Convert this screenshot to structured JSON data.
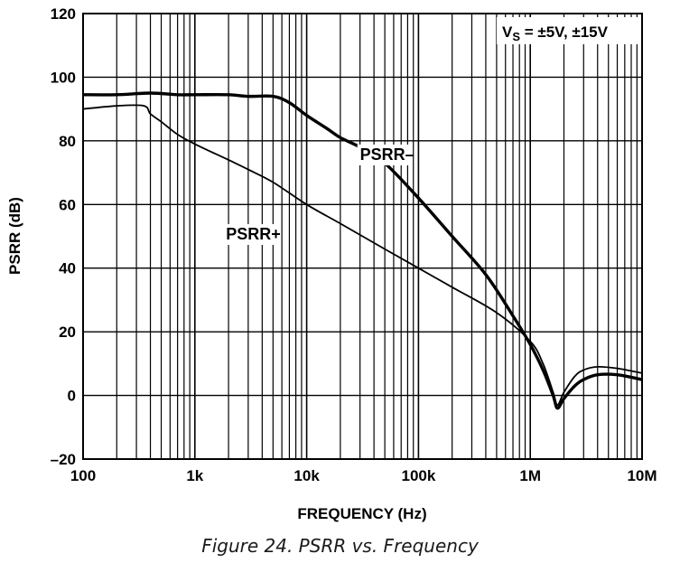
{
  "chart_data": {
    "type": "line",
    "xlabel": "FREQUENCY (Hz)",
    "ylabel": "PSRR (dB)",
    "xscale": "log",
    "xlim": [
      100,
      10000000
    ],
    "ylim": [
      -20,
      120
    ],
    "xticks": [
      {
        "value": 100,
        "label": "100"
      },
      {
        "value": 1000,
        "label": "1k"
      },
      {
        "value": 10000,
        "label": "10k"
      },
      {
        "value": 100000,
        "label": "100k"
      },
      {
        "value": 1000000,
        "label": "1M"
      },
      {
        "value": 10000000,
        "label": "10M"
      }
    ],
    "yticks": [
      -20,
      0,
      20,
      40,
      60,
      80,
      100,
      120
    ],
    "ytick_labels": [
      "–20",
      "0",
      "20",
      "40",
      "60",
      "80",
      "100",
      "120"
    ],
    "grid": true,
    "annotation": {
      "main": "V",
      "sub": "S",
      "rest": " = ±5V, ±15V",
      "position": "top-right"
    },
    "series": [
      {
        "name": "PSRR–",
        "style": "thick",
        "x": [
          100,
          200,
          400,
          700,
          1000,
          2000,
          3000,
          5000,
          7000,
          10000,
          15000,
          20000,
          30000,
          50000,
          100000,
          200000,
          400000,
          700000,
          1000000,
          1300000,
          1600000,
          1750000,
          2000000,
          2500000,
          3000000,
          4000000,
          6000000,
          10000000
        ],
        "y": [
          94.5,
          94.5,
          95,
          94.5,
          94.5,
          94.5,
          94,
          94,
          92,
          88,
          84,
          81,
          78,
          73,
          62,
          50,
          38,
          25,
          16,
          8,
          0,
          -4,
          -1,
          3,
          5,
          6.5,
          6.5,
          5
        ]
      },
      {
        "name": "PSRR+",
        "style": "thin",
        "x": [
          100,
          200,
          350,
          400,
          500,
          700,
          1000,
          2000,
          3000,
          5000,
          10000,
          20000,
          50000,
          100000,
          200000,
          500000,
          1000000,
          1300000,
          1600000,
          1750000,
          2000000,
          2500000,
          3000000,
          4000000,
          6000000,
          10000000
        ],
        "y": [
          90,
          91,
          91,
          88.5,
          86,
          82,
          79,
          74,
          71,
          67,
          60,
          54,
          46,
          40,
          34,
          26,
          17,
          10,
          1,
          -3,
          1,
          6,
          8,
          9,
          8.5,
          7
        ]
      }
    ],
    "series_labels": [
      {
        "text": "PSRR–",
        "x": 30000,
        "y": 74
      },
      {
        "text": "PSRR+",
        "x": 1900,
        "y": 49
      }
    ]
  },
  "caption": "Figure 24. PSRR vs. Frequency"
}
